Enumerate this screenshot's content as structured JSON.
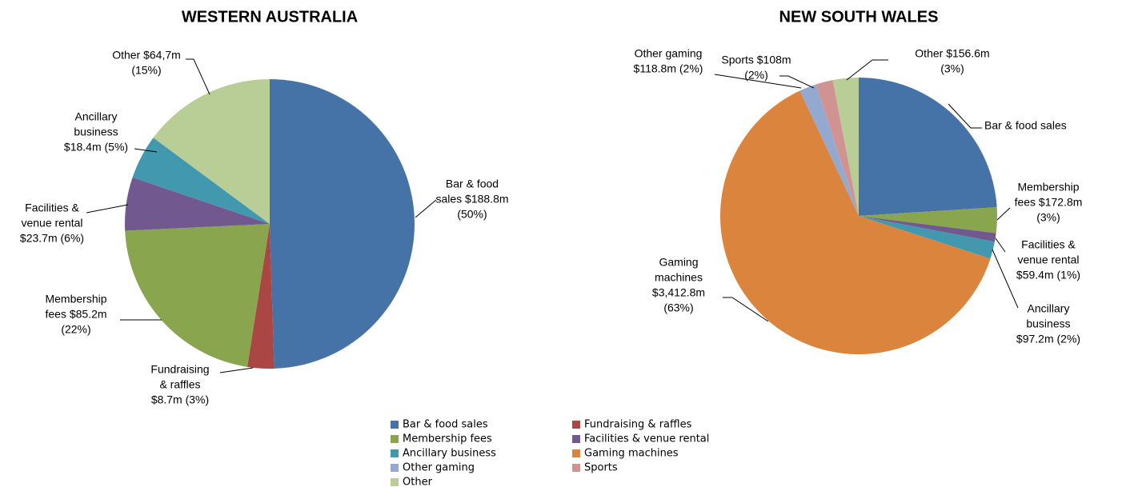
{
  "chart_data": [
    {
      "type": "pie",
      "title": "WESTERN AUSTRALIA",
      "categories": [
        "Bar & food sales",
        "Fundraising & raffles",
        "Membership fees",
        "Facilities & venue rental",
        "Ancillary business",
        "Other"
      ],
      "values": [
        50,
        3,
        22,
        6,
        5,
        15
      ],
      "value_labels": [
        [
          "Bar & food",
          "sales $188.8m",
          "(50%)"
        ],
        [
          "Fundraising",
          "& raffles",
          "$8.7m (3%)"
        ],
        [
          "Membership",
          "fees  $85.2m",
          "(22%)"
        ],
        [
          "Facilities &",
          "venue rental",
          "$23.7m (6%)"
        ],
        [
          "Ancillary",
          "business",
          "$18.4m (5%)"
        ],
        [
          "Other $64,7m",
          "(15%)"
        ]
      ],
      "colors": [
        "#4572a7",
        "#aa4643",
        "#89a54e",
        "#71588f",
        "#4198af",
        "#b9cd96"
      ]
    },
    {
      "type": "pie",
      "title": "NEW SOUTH WALES",
      "categories": [
        "Bar & food sales",
        "Membership fees",
        "Facilities & venue rental",
        "Ancillary business",
        "Gaming machines",
        "Other gaming",
        "Sports",
        "Other"
      ],
      "values": [
        24,
        3,
        1,
        2,
        63,
        2,
        2,
        3
      ],
      "value_labels": [
        [
          "Bar & food sales"
        ],
        [
          "Membership",
          "fees $172.8m",
          "(3%)"
        ],
        [
          "Facilities &",
          "venue rental",
          "$59.4m (1%)"
        ],
        [
          "Ancillary",
          "business",
          "$97.2m (2%)"
        ],
        [
          "Gaming",
          "machines",
          "$3,412.8m",
          "(63%)"
        ],
        [
          "Other gaming",
          "$118.8m (2%)"
        ],
        [
          "Sports $108m",
          "(2%)"
        ],
        [
          "Other $156.6m",
          "(3%)"
        ]
      ],
      "colors": [
        "#4572a7",
        "#89a54e",
        "#71588f",
        "#4198af",
        "#db843d",
        "#93a9cf",
        "#d19392",
        "#b9cd96"
      ]
    }
  ],
  "legend": [
    {
      "name": "Bar & food sales",
      "color": "#4572a7"
    },
    {
      "name": "Fundraising & raffles",
      "color": "#aa4643"
    },
    {
      "name": "Membership fees",
      "color": "#89a54e"
    },
    {
      "name": "Facilities & venue rental",
      "color": "#71588f"
    },
    {
      "name": "Ancillary business",
      "color": "#4198af"
    },
    {
      "name": "Gaming machines",
      "color": "#db843d"
    },
    {
      "name": "Other gaming",
      "color": "#93a9cf"
    },
    {
      "name": "Sports",
      "color": "#d19392"
    },
    {
      "name": "Other",
      "color": "#b9cd96"
    }
  ]
}
